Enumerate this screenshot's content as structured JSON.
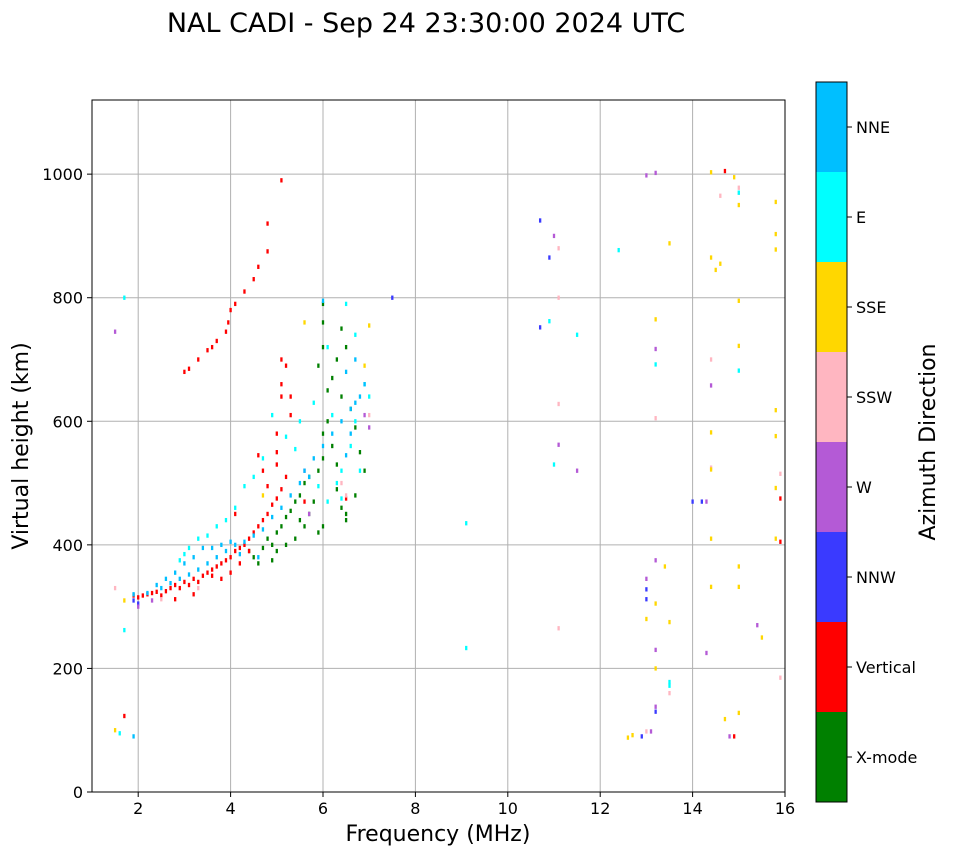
{
  "chart_data": {
    "type": "scatter",
    "title": "NAL CADI - Sep 24 23:30:00 2024 UTC",
    "xlabel": "Frequency (MHz)",
    "ylabel": "Virtual height (km)",
    "xlim": [
      1,
      16
    ],
    "ylim": [
      0,
      1120
    ],
    "xticks": [
      2,
      4,
      6,
      8,
      10,
      12,
      14,
      16
    ],
    "yticks": [
      0,
      200,
      400,
      600,
      800,
      1000
    ],
    "grid": true,
    "colorbar": {
      "label": "Azimuth Direction",
      "categories": [
        {
          "name": "X-mode",
          "color": "#008000"
        },
        {
          "name": "Vertical",
          "color": "#ff0000"
        },
        {
          "name": "NNW",
          "color": "#3a3aff"
        },
        {
          "name": "W",
          "color": "#b45ad6"
        },
        {
          "name": "SSW",
          "color": "#ffb6c1"
        },
        {
          "name": "SSE",
          "color": "#ffd700"
        },
        {
          "name": "E",
          "color": "#00ffff"
        },
        {
          "name": "NNE",
          "color": "#00bfff"
        }
      ]
    },
    "point_width_mhz": 0.05,
    "point_height_km": 7,
    "series": [
      {
        "name": "X-mode",
        "points": [
          [
            4.4,
            390
          ],
          [
            4.5,
            380
          ],
          [
            4.6,
            370
          ],
          [
            4.7,
            395
          ],
          [
            4.8,
            410
          ],
          [
            4.9,
            400
          ],
          [
            5.0,
            420
          ],
          [
            5.1,
            430
          ],
          [
            5.2,
            445
          ],
          [
            5.3,
            455
          ],
          [
            5.4,
            470
          ],
          [
            5.5,
            480
          ],
          [
            5.6,
            500
          ],
          [
            5.7,
            510
          ],
          [
            5.8,
            470
          ],
          [
            5.9,
            520
          ],
          [
            6.0,
            540
          ],
          [
            6.0,
            580
          ],
          [
            6.1,
            600
          ],
          [
            6.1,
            650
          ],
          [
            6.2,
            670
          ],
          [
            6.0,
            720
          ],
          [
            6.0,
            760
          ],
          [
            6.0,
            790
          ],
          [
            5.9,
            690
          ],
          [
            6.2,
            560
          ],
          [
            6.3,
            530
          ],
          [
            6.3,
            490
          ],
          [
            6.4,
            460
          ],
          [
            6.5,
            440
          ],
          [
            6.6,
            620
          ],
          [
            6.7,
            590
          ],
          [
            6.8,
            550
          ],
          [
            6.9,
            520
          ],
          [
            6.5,
            450
          ],
          [
            6.7,
            480
          ],
          [
            6.4,
            640
          ],
          [
            6.3,
            700
          ],
          [
            6.5,
            720
          ],
          [
            6.4,
            750
          ],
          [
            5.7,
            450
          ],
          [
            5.5,
            440
          ],
          [
            5.9,
            420
          ],
          [
            6.0,
            430
          ],
          [
            5.2,
            400
          ],
          [
            5.0,
            390
          ],
          [
            4.9,
            375
          ],
          [
            5.4,
            410
          ],
          [
            5.6,
            430
          ]
        ]
      },
      {
        "name": "Vertical",
        "points": [
          [
            1.9,
            318
          ],
          [
            2.0,
            315
          ],
          [
            2.1,
            318
          ],
          [
            2.2,
            320
          ],
          [
            2.3,
            322
          ],
          [
            2.4,
            324
          ],
          [
            2.5,
            318
          ],
          [
            2.6,
            325
          ],
          [
            2.7,
            330
          ],
          [
            2.8,
            335
          ],
          [
            2.9,
            330
          ],
          [
            3.0,
            340
          ],
          [
            3.1,
            335
          ],
          [
            3.2,
            345
          ],
          [
            3.3,
            340
          ],
          [
            3.4,
            350
          ],
          [
            3.5,
            355
          ],
          [
            3.6,
            360
          ],
          [
            3.7,
            365
          ],
          [
            3.8,
            370
          ],
          [
            3.9,
            375
          ],
          [
            4.0,
            380
          ],
          [
            4.1,
            390
          ],
          [
            4.2,
            395
          ],
          [
            4.3,
            400
          ],
          [
            4.4,
            410
          ],
          [
            4.5,
            420
          ],
          [
            4.6,
            430
          ],
          [
            4.7,
            440
          ],
          [
            4.8,
            450
          ],
          [
            4.9,
            465
          ],
          [
            5.0,
            475
          ],
          [
            5.1,
            490
          ],
          [
            5.2,
            510
          ],
          [
            4.0,
            355
          ],
          [
            3.8,
            345
          ],
          [
            3.6,
            350
          ],
          [
            4.2,
            370
          ],
          [
            4.4,
            390
          ],
          [
            3.2,
            320
          ],
          [
            2.8,
            312
          ],
          [
            1.7,
            123
          ],
          [
            3.0,
            680
          ],
          [
            3.1,
            685
          ],
          [
            3.3,
            700
          ],
          [
            3.5,
            715
          ],
          [
            3.6,
            720
          ],
          [
            3.7,
            730
          ],
          [
            3.9,
            745
          ],
          [
            3.95,
            760
          ],
          [
            4.0,
            780
          ],
          [
            4.1,
            790
          ],
          [
            4.3,
            810
          ],
          [
            4.5,
            830
          ],
          [
            4.6,
            850
          ],
          [
            4.8,
            875
          ],
          [
            4.8,
            920
          ],
          [
            5.1,
            990
          ],
          [
            5.1,
            700
          ],
          [
            5.2,
            690
          ],
          [
            5.1,
            660
          ],
          [
            5.3,
            610
          ],
          [
            5.0,
            550
          ],
          [
            5.0,
            530
          ],
          [
            4.6,
            545
          ],
          [
            4.7,
            520
          ],
          [
            4.8,
            495
          ],
          [
            5.1,
            640
          ],
          [
            5.0,
            580
          ],
          [
            5.3,
            640
          ],
          [
            4.1,
            450
          ],
          [
            6.5,
            475
          ],
          [
            5.6,
            470
          ],
          [
            15.9,
            475
          ],
          [
            15.9,
            405
          ],
          [
            14.9,
            90
          ],
          [
            14.7,
            1005
          ]
        ]
      },
      {
        "name": "NNW",
        "points": [
          [
            1.9,
            310
          ],
          [
            2.0,
            305
          ],
          [
            10.7,
            925
          ],
          [
            10.9,
            865
          ],
          [
            10.7,
            752
          ],
          [
            12.9,
            90
          ],
          [
            13.2,
            130
          ],
          [
            14.0,
            470
          ],
          [
            13.0,
            328
          ],
          [
            13.0,
            312
          ],
          [
            7.5,
            800
          ],
          [
            14.2,
            470
          ]
        ]
      },
      {
        "name": "W",
        "points": [
          [
            2.0,
            300
          ],
          [
            2.3,
            310
          ],
          [
            13.0,
            998
          ],
          [
            13.2,
            1002
          ],
          [
            13.2,
            717
          ],
          [
            11.1,
            562
          ],
          [
            11.5,
            520
          ],
          [
            13.2,
            230
          ],
          [
            13.2,
            375
          ],
          [
            13.0,
            345
          ],
          [
            14.4,
            658
          ],
          [
            14.3,
            470
          ],
          [
            13.1,
            98
          ],
          [
            14.3,
            225
          ],
          [
            14.8,
            90
          ],
          [
            15.4,
            270
          ],
          [
            7.0,
            590
          ],
          [
            6.9,
            610
          ],
          [
            5.7,
            450
          ],
          [
            5.6,
            520
          ],
          [
            13.2,
            138
          ],
          [
            11.0,
            900
          ],
          [
            1.5,
            745
          ]
        ]
      },
      {
        "name": "SSW",
        "points": [
          [
            1.5,
            330
          ],
          [
            2.5,
            312
          ],
          [
            3.3,
            330
          ],
          [
            11.1,
            880
          ],
          [
            11.1,
            800
          ],
          [
            11.1,
            628
          ],
          [
            11.1,
            265
          ],
          [
            13.2,
            605
          ],
          [
            14.4,
            700
          ],
          [
            14.6,
            965
          ],
          [
            15.0,
            978
          ],
          [
            14.4,
            525
          ],
          [
            13.5,
            160
          ],
          [
            6.5,
            480
          ],
          [
            6.4,
            500
          ],
          [
            7.0,
            610
          ],
          [
            13.0,
            98
          ],
          [
            15.9,
            185
          ],
          [
            15.9,
            515
          ],
          [
            15.0,
            970
          ]
        ]
      },
      {
        "name": "SSE",
        "points": [
          [
            1.5,
            100
          ],
          [
            1.7,
            310
          ],
          [
            13.5,
            888
          ],
          [
            13.2,
            765
          ],
          [
            13.2,
            200
          ],
          [
            13.5,
            275
          ],
          [
            13.4,
            365
          ],
          [
            13.2,
            305
          ],
          [
            12.7,
            92
          ],
          [
            12.6,
            88
          ],
          [
            13.0,
            280
          ],
          [
            14.4,
            1003
          ],
          [
            14.9,
            995
          ],
          [
            15.0,
            950
          ],
          [
            15.0,
            795
          ],
          [
            14.4,
            865
          ],
          [
            14.6,
            855
          ],
          [
            14.5,
            845
          ],
          [
            15.0,
            722
          ],
          [
            14.4,
            582
          ],
          [
            14.4,
            522
          ],
          [
            14.4,
            410
          ],
          [
            14.4,
            332
          ],
          [
            15.0,
            365
          ],
          [
            15.0,
            332
          ],
          [
            15.0,
            128
          ],
          [
            14.7,
            118
          ],
          [
            15.5,
            250
          ],
          [
            15.8,
            955
          ],
          [
            15.8,
            903
          ],
          [
            15.8,
            878
          ],
          [
            15.8,
            618
          ],
          [
            15.8,
            576
          ],
          [
            15.8,
            492
          ],
          [
            15.8,
            410
          ],
          [
            7.0,
            755
          ],
          [
            6.9,
            690
          ],
          [
            5.6,
            760
          ],
          [
            4.7,
            480
          ]
        ]
      },
      {
        "name": "E",
        "points": [
          [
            1.7,
            800
          ],
          [
            1.7,
            262
          ],
          [
            1.6,
            95
          ],
          [
            9.1,
            435
          ],
          [
            9.1,
            233
          ],
          [
            10.9,
            762
          ],
          [
            11.0,
            530
          ],
          [
            11.5,
            740
          ],
          [
            12.4,
            877
          ],
          [
            13.2,
            692
          ],
          [
            13.5,
            178
          ],
          [
            13.5,
            172
          ],
          [
            15.0,
            682
          ],
          [
            15.0,
            970
          ],
          [
            6.5,
            790
          ],
          [
            6.7,
            740
          ],
          [
            6.1,
            720
          ],
          [
            6.2,
            610
          ],
          [
            6.7,
            600
          ],
          [
            6.6,
            560
          ],
          [
            6.4,
            520
          ],
          [
            6.3,
            500
          ],
          [
            5.9,
            495
          ],
          [
            6.4,
            475
          ],
          [
            6.8,
            520
          ],
          [
            7.0,
            640
          ],
          [
            6.9,
            660
          ],
          [
            5.2,
            575
          ],
          [
            5.4,
            555
          ],
          [
            4.7,
            540
          ],
          [
            4.5,
            510
          ],
          [
            4.3,
            495
          ],
          [
            4.1,
            460
          ],
          [
            3.9,
            440
          ],
          [
            3.7,
            430
          ],
          [
            3.5,
            415
          ],
          [
            3.3,
            410
          ],
          [
            3.1,
            395
          ],
          [
            3.0,
            385
          ],
          [
            2.9,
            375
          ],
          [
            5.5,
            600
          ],
          [
            5.8,
            630
          ],
          [
            4.9,
            610
          ],
          [
            6.1,
            470
          ]
        ]
      },
      {
        "name": "NNE",
        "points": [
          [
            1.9,
            320
          ],
          [
            2.2,
            322
          ],
          [
            2.5,
            330
          ],
          [
            2.7,
            338
          ],
          [
            2.9,
            345
          ],
          [
            3.1,
            352
          ],
          [
            3.3,
            360
          ],
          [
            3.5,
            370
          ],
          [
            3.7,
            380
          ],
          [
            3.9,
            390
          ],
          [
            4.1,
            400
          ],
          [
            4.3,
            405
          ],
          [
            4.5,
            415
          ],
          [
            4.7,
            425
          ],
          [
            4.9,
            445
          ],
          [
            5.1,
            460
          ],
          [
            5.3,
            480
          ],
          [
            5.5,
            500
          ],
          [
            5.6,
            520
          ],
          [
            5.8,
            540
          ],
          [
            6.0,
            560
          ],
          [
            6.2,
            580
          ],
          [
            6.4,
            600
          ],
          [
            6.6,
            620
          ],
          [
            6.8,
            640
          ],
          [
            6.9,
            660
          ],
          [
            6.7,
            700
          ],
          [
            6.5,
            680
          ],
          [
            6.0,
            795
          ],
          [
            5.7,
            510
          ],
          [
            6.6,
            580
          ],
          [
            6.5,
            545
          ],
          [
            6.7,
            630
          ],
          [
            4.6,
            380
          ],
          [
            4.2,
            385
          ],
          [
            4.0,
            405
          ],
          [
            3.8,
            400
          ],
          [
            3.6,
            395
          ],
          [
            3.4,
            395
          ],
          [
            3.2,
            380
          ],
          [
            3.0,
            370
          ],
          [
            2.8,
            355
          ],
          [
            2.6,
            345
          ],
          [
            2.4,
            335
          ],
          [
            1.9,
            90
          ]
        ]
      }
    ]
  }
}
